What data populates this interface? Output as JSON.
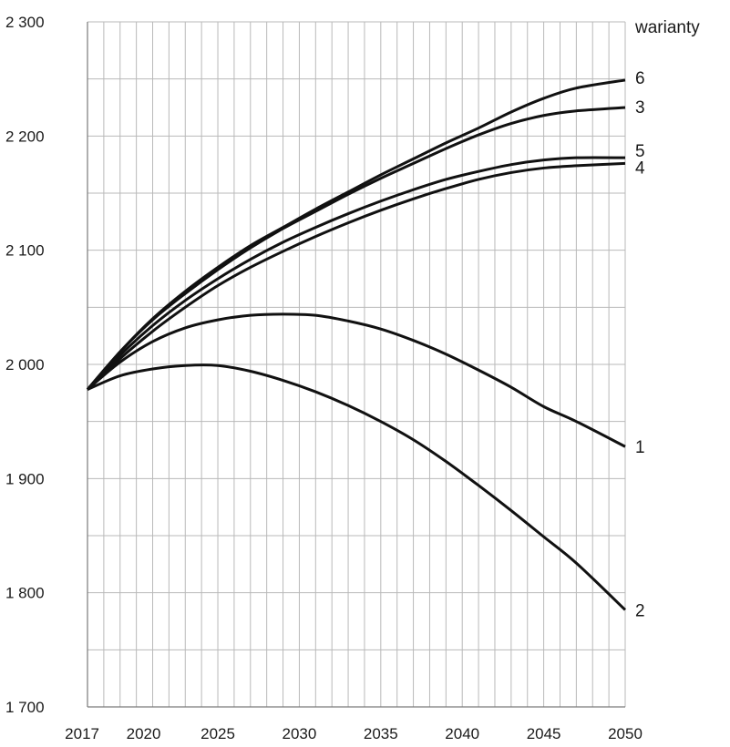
{
  "chart_data": {
    "type": "line",
    "legend_title": "warianty",
    "x_ticks": [
      "2017",
      "2020",
      "2025",
      "2030",
      "2035",
      "2040",
      "2045",
      "2050"
    ],
    "y_ticks": [
      "1 700",
      "1 800",
      "1 900",
      "2 000",
      "2 100",
      "2 200",
      "2 300"
    ],
    "xlim": [
      2017,
      2050
    ],
    "ylim": [
      1700,
      2300
    ],
    "grid": true,
    "x_minor_step": 1,
    "y_minor_step": 50,
    "x": [
      2017,
      2019,
      2021,
      2023,
      2025,
      2027,
      2029,
      2031,
      2033,
      2035,
      2037,
      2039,
      2041,
      2043,
      2045,
      2047,
      2050
    ],
    "series": [
      {
        "name": "1",
        "values": [
          1978,
          2002,
          2020,
          2032,
          2039,
          2043,
          2044,
          2043,
          2038,
          2031,
          2021,
          2009,
          1995,
          1980,
          1963,
          1950,
          1928
        ]
      },
      {
        "name": "2",
        "values": [
          1978,
          1990,
          1996,
          1999,
          1999,
          1994,
          1986,
          1976,
          1964,
          1950,
          1934,
          1915,
          1894,
          1872,
          1849,
          1826,
          1785
        ]
      },
      {
        "name": "3",
        "values": [
          1978,
          2011,
          2039,
          2062,
          2083,
          2102,
          2119,
          2134,
          2149,
          2163,
          2176,
          2189,
          2201,
          2211,
          2218,
          2222,
          2225
        ]
      },
      {
        "name": "4",
        "values": [
          1978,
          2005,
          2029,
          2050,
          2069,
          2085,
          2099,
          2112,
          2124,
          2135,
          2145,
          2154,
          2162,
          2168,
          2172,
          2174,
          2176
        ]
      },
      {
        "name": "5",
        "values": [
          1978,
          2008,
          2034,
          2056,
          2075,
          2092,
          2107,
          2120,
          2132,
          2143,
          2153,
          2162,
          2169,
          2175,
          2179,
          2181,
          2181
        ]
      },
      {
        "name": "6",
        "values": [
          1978,
          2011,
          2040,
          2064,
          2085,
          2104,
          2120,
          2136,
          2151,
          2166,
          2180,
          2194,
          2207,
          2221,
          2233,
          2242,
          2249
        ]
      }
    ]
  }
}
